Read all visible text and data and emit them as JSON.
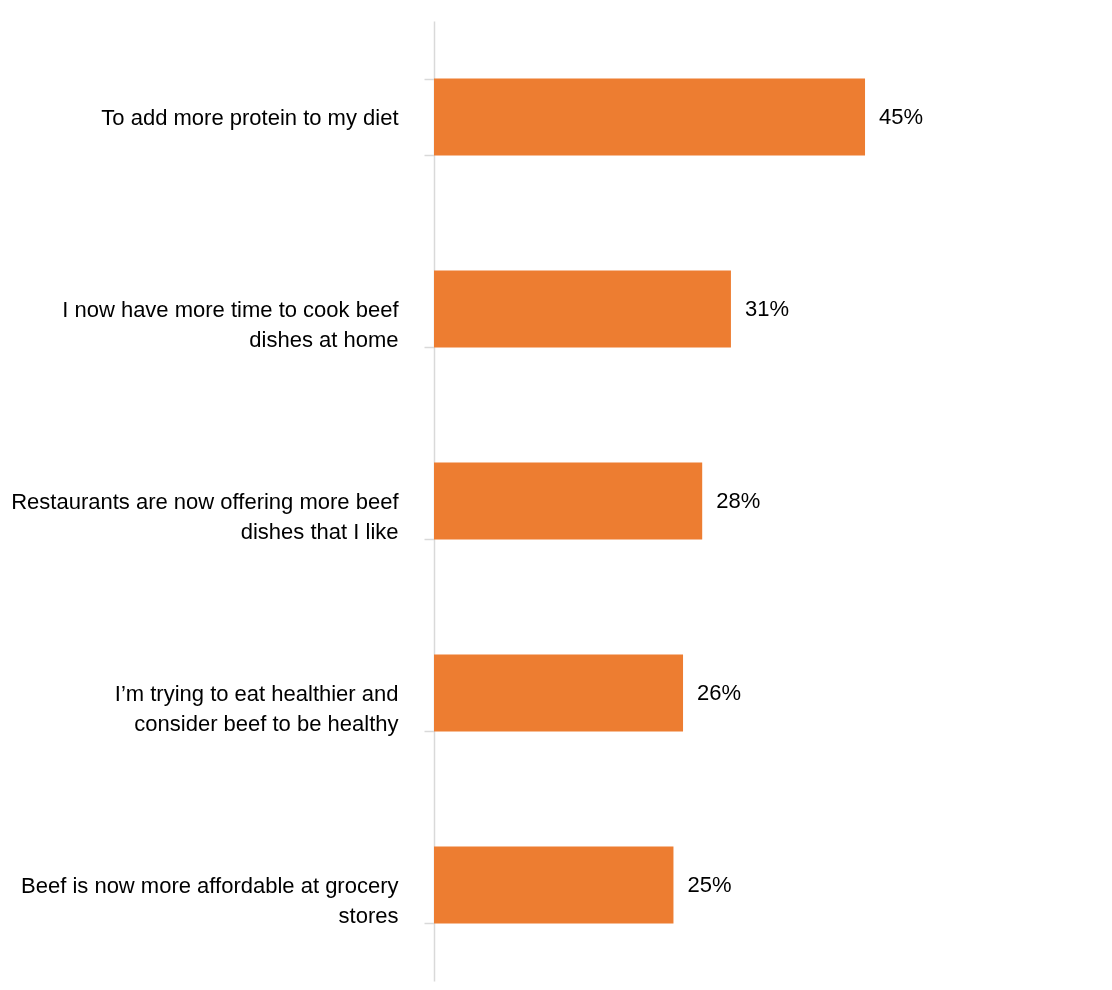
{
  "chart_data": {
    "type": "bar",
    "orientation": "horizontal",
    "categories": [
      "To add more protein to my diet",
      "I now have more time to cook beef dishes at home",
      "Restaurants are now offering more beef dishes that I like",
      "I’m trying to eat healthier and consider beef to be healthy",
      "Beef is now more affordable at grocery stores"
    ],
    "values": [
      45,
      31,
      28,
      26,
      25
    ],
    "value_labels": [
      "45%",
      "31%",
      "28%",
      "26%",
      "25%"
    ],
    "color": "#ed7d31"
  }
}
